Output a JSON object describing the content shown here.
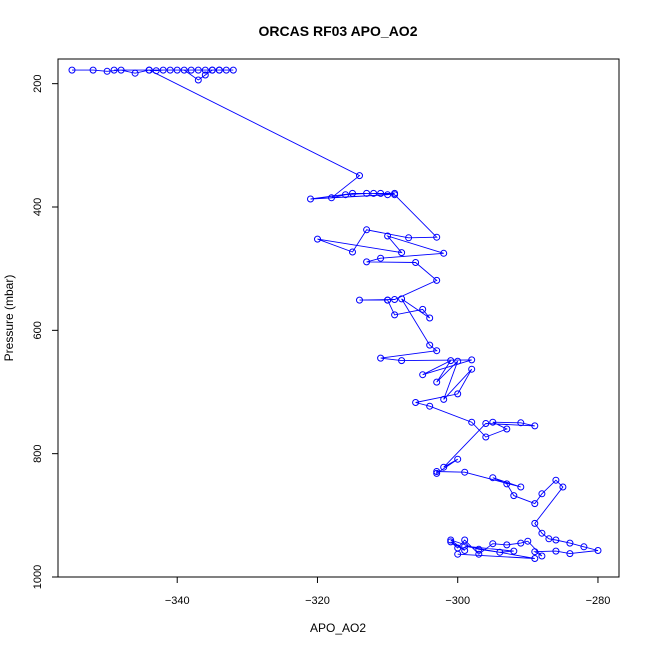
{
  "chart_data": {
    "type": "scatter",
    "title": "ORCAS RF03 APO_AO2",
    "xlabel": "APO_AO2",
    "ylabel": "Pressure (mbar)",
    "xlim": [
      -357,
      -277
    ],
    "ylim": [
      160,
      1000
    ],
    "y_reversed": true,
    "xticks": [
      -340,
      -320,
      -300,
      -280
    ],
    "yticks": [
      200,
      400,
      600,
      800,
      1000
    ],
    "grid": false,
    "colors": {
      "series": "#0000ff",
      "axes": "#000000"
    },
    "series": [
      {
        "mode": "lines+markers",
        "x": [
          -355,
          -352,
          -350,
          -348,
          -346,
          -344,
          -343,
          -342,
          -341,
          -340,
          -339,
          -337,
          -336,
          -335,
          -334,
          -333,
          -332,
          -334,
          -336,
          -338,
          -335,
          -337,
          -349,
          -344,
          -314,
          -318,
          -316,
          -313,
          -311,
          -309,
          -310,
          -321,
          -315,
          -312,
          -309,
          -303,
          -307,
          -313,
          -315,
          -320,
          -308,
          -310,
          -302,
          -311,
          -313,
          -306,
          -303,
          -309,
          -314,
          -310,
          -310,
          -309,
          -305,
          -304,
          -308,
          -304,
          -303,
          -311,
          -308,
          -298,
          -305,
          -301,
          -303,
          -300,
          -302,
          -298,
          -300,
          -306,
          -304,
          -298,
          -296,
          -293,
          -295,
          -291,
          -289,
          -296,
          -302,
          -300,
          -303,
          -303,
          -299,
          -291,
          -295,
          -293,
          -292,
          -289,
          -288,
          -286,
          -285,
          -289,
          -288,
          -287,
          -286,
          -284,
          -282,
          -280,
          -284,
          -286,
          -289,
          -288,
          -290,
          -291,
          -293,
          -295,
          -297,
          -299,
          -300,
          -301,
          -299,
          -301,
          -297,
          -294,
          -292,
          -299,
          -289,
          -300
        ],
        "y": [
          178,
          178,
          180,
          178,
          183,
          178,
          179,
          178,
          178,
          178,
          178,
          194,
          186,
          178,
          178,
          178,
          178,
          178,
          178,
          178,
          178,
          178,
          178,
          178,
          349,
          385,
          380,
          378,
          378,
          378,
          380,
          387,
          378,
          378,
          380,
          449,
          450,
          437,
          473,
          452,
          474,
          447,
          475,
          483,
          489,
          490,
          519,
          550,
          551,
          551,
          551,
          575,
          566,
          580,
          549,
          624,
          633,
          645,
          649,
          648,
          672,
          649,
          684,
          650,
          712,
          663,
          703,
          717,
          723,
          749,
          773,
          760,
          749,
          750,
          755,
          751,
          822,
          809,
          832,
          829,
          830,
          854,
          839,
          849,
          868,
          881,
          865,
          843,
          854,
          913,
          929,
          938,
          940,
          945,
          951,
          957,
          962,
          958,
          959,
          966,
          942,
          945,
          948,
          946,
          963,
          940,
          953,
          943,
          957,
          940,
          955,
          960,
          958,
          950,
          970,
          963
        ]
      }
    ]
  }
}
